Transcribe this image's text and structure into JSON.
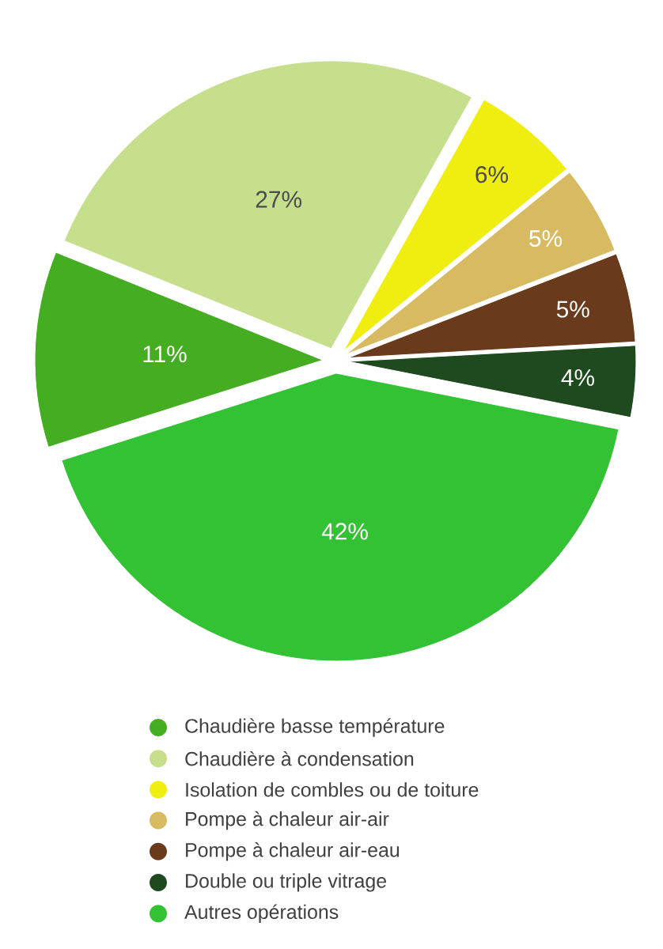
{
  "chart_data": {
    "type": "pie",
    "categories": [
      "Chaudière basse température",
      "Chaudière à condensation",
      "Isolation de combles ou de toiture",
      "Pompe à chaleur air-air",
      "Pompe à chaleur air-eau",
      "Double ou triple vitrage",
      "Autres opérations"
    ],
    "values": [
      11,
      27,
      6,
      5,
      5,
      4,
      42
    ],
    "value_labels": [
      "11%",
      "27%",
      "6%",
      "5%",
      "5%",
      "4%",
      "42%"
    ],
    "colors": [
      "#45ad22",
      "#c6df8c",
      "#f0ee10",
      "#d8ba62",
      "#6a3a1c",
      "#1f4a1f",
      "#33c233"
    ],
    "legend": "bottom"
  }
}
